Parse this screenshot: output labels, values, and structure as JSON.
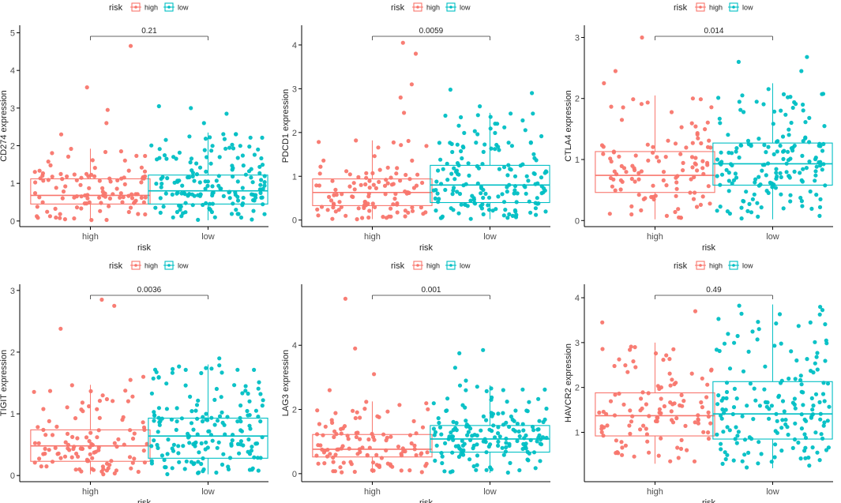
{
  "legend": {
    "title": "risk",
    "labels": [
      "high",
      "low"
    ]
  },
  "colors": {
    "high": "#F8766D",
    "low": "#00BFC4",
    "axis": "#000000",
    "text": "#222222",
    "tick_text": "#4d4d4d"
  },
  "chart_data": [
    {
      "type": "boxplot",
      "ylabel": "CD274 expression",
      "xlabel": "risk",
      "categories": [
        "high",
        "low"
      ],
      "ylim": [
        -0.15,
        5.2
      ],
      "yticks": [
        0,
        1,
        2,
        3,
        4,
        5
      ],
      "pvalue": "0.21",
      "boxes": [
        {
          "group": "high",
          "min": 0.02,
          "q1": 0.45,
          "median": 0.68,
          "q3": 1.12,
          "max": 1.92,
          "n": 115,
          "outliers": [
            2.3,
            2.6,
            2.95,
            3.55,
            4.65
          ]
        },
        {
          "group": "low",
          "min": 0.02,
          "q1": 0.45,
          "median": 0.8,
          "q3": 1.22,
          "max": 2.35,
          "n": 170,
          "outliers": [
            2.6,
            2.85,
            3.0,
            3.05
          ]
        }
      ]
    },
    {
      "type": "boxplot",
      "ylabel": "PDCD1 expression",
      "xlabel": "risk",
      "categories": [
        "high",
        "low"
      ],
      "ylim": [
        -0.15,
        4.45
      ],
      "yticks": [
        0,
        1,
        2,
        3,
        4
      ],
      "pvalue": "0.0059",
      "boxes": [
        {
          "group": "high",
          "min": 0.02,
          "q1": 0.33,
          "median": 0.63,
          "q3": 0.94,
          "max": 1.82,
          "n": 115,
          "outliers": [
            2.45,
            2.8,
            3.1,
            3.8,
            4.05
          ]
        },
        {
          "group": "low",
          "min": 0.02,
          "q1": 0.4,
          "median": 0.8,
          "q3": 1.25,
          "max": 2.45,
          "n": 170,
          "outliers": [
            2.6,
            2.9,
            2.98
          ]
        }
      ]
    },
    {
      "type": "boxplot",
      "ylabel": "CTLA4 expression",
      "xlabel": "risk",
      "categories": [
        "high",
        "low"
      ],
      "ylim": [
        -0.1,
        3.2
      ],
      "yticks": [
        0,
        1,
        2,
        3
      ],
      "pvalue": "0.014",
      "boxes": [
        {
          "group": "high",
          "min": 0.02,
          "q1": 0.46,
          "median": 0.74,
          "q3": 1.13,
          "max": 2.05,
          "n": 115,
          "outliers": [
            2.25,
            2.45,
            3.0
          ]
        },
        {
          "group": "low",
          "min": 0.02,
          "q1": 0.58,
          "median": 0.93,
          "q3": 1.27,
          "max": 2.25,
          "n": 170,
          "outliers": [
            2.45,
            2.6,
            2.68
          ]
        }
      ]
    },
    {
      "type": "boxplot",
      "ylabel": "TIGIT expression",
      "xlabel": "risk",
      "categories": [
        "high",
        "low"
      ],
      "ylim": [
        -0.1,
        3.1
      ],
      "yticks": [
        0,
        1,
        2,
        3
      ],
      "pvalue": "0.0036",
      "boxes": [
        {
          "group": "high",
          "min": 0.02,
          "q1": 0.23,
          "median": 0.48,
          "q3": 0.74,
          "max": 1.47,
          "n": 115,
          "outliers": [
            1.55,
            1.6,
            2.38,
            2.75,
            2.85
          ]
        },
        {
          "group": "low",
          "min": 0.02,
          "q1": 0.28,
          "median": 0.64,
          "q3": 0.93,
          "max": 1.8,
          "n": 170,
          "outliers": [
            1.9
          ]
        }
      ]
    },
    {
      "type": "boxplot",
      "ylabel": "LAG3 expression",
      "xlabel": "risk",
      "categories": [
        "high",
        "low"
      ],
      "ylim": [
        -0.25,
        5.9
      ],
      "yticks": [
        0,
        2,
        4
      ],
      "pvalue": "0.001",
      "boxes": [
        {
          "group": "high",
          "min": 0.02,
          "q1": 0.52,
          "median": 0.76,
          "q3": 1.22,
          "max": 2.25,
          "n": 115,
          "outliers": [
            2.6,
            3.1,
            3.9,
            5.45
          ]
        },
        {
          "group": "low",
          "min": 0.02,
          "q1": 0.67,
          "median": 1.08,
          "q3": 1.5,
          "max": 2.75,
          "n": 170,
          "outliers": [
            2.9,
            3.3,
            3.75,
            3.85
          ]
        }
      ]
    },
    {
      "type": "boxplot",
      "ylabel": "HAVCR2 expression",
      "xlabel": "risk",
      "categories": [
        "high",
        "low"
      ],
      "ylim": [
        -0.1,
        4.3
      ],
      "yticks": [
        1,
        2,
        3,
        4
      ],
      "pvalue": "0.49",
      "boxes": [
        {
          "group": "high",
          "min": 0.3,
          "q1": 0.92,
          "median": 1.37,
          "q3": 1.88,
          "max": 3.0,
          "n": 115,
          "outliers": [
            3.45,
            3.7
          ]
        },
        {
          "group": "low",
          "min": 0.2,
          "q1": 0.85,
          "median": 1.41,
          "q3": 2.13,
          "max": 3.85,
          "n": 170,
          "outliers": []
        }
      ]
    }
  ]
}
